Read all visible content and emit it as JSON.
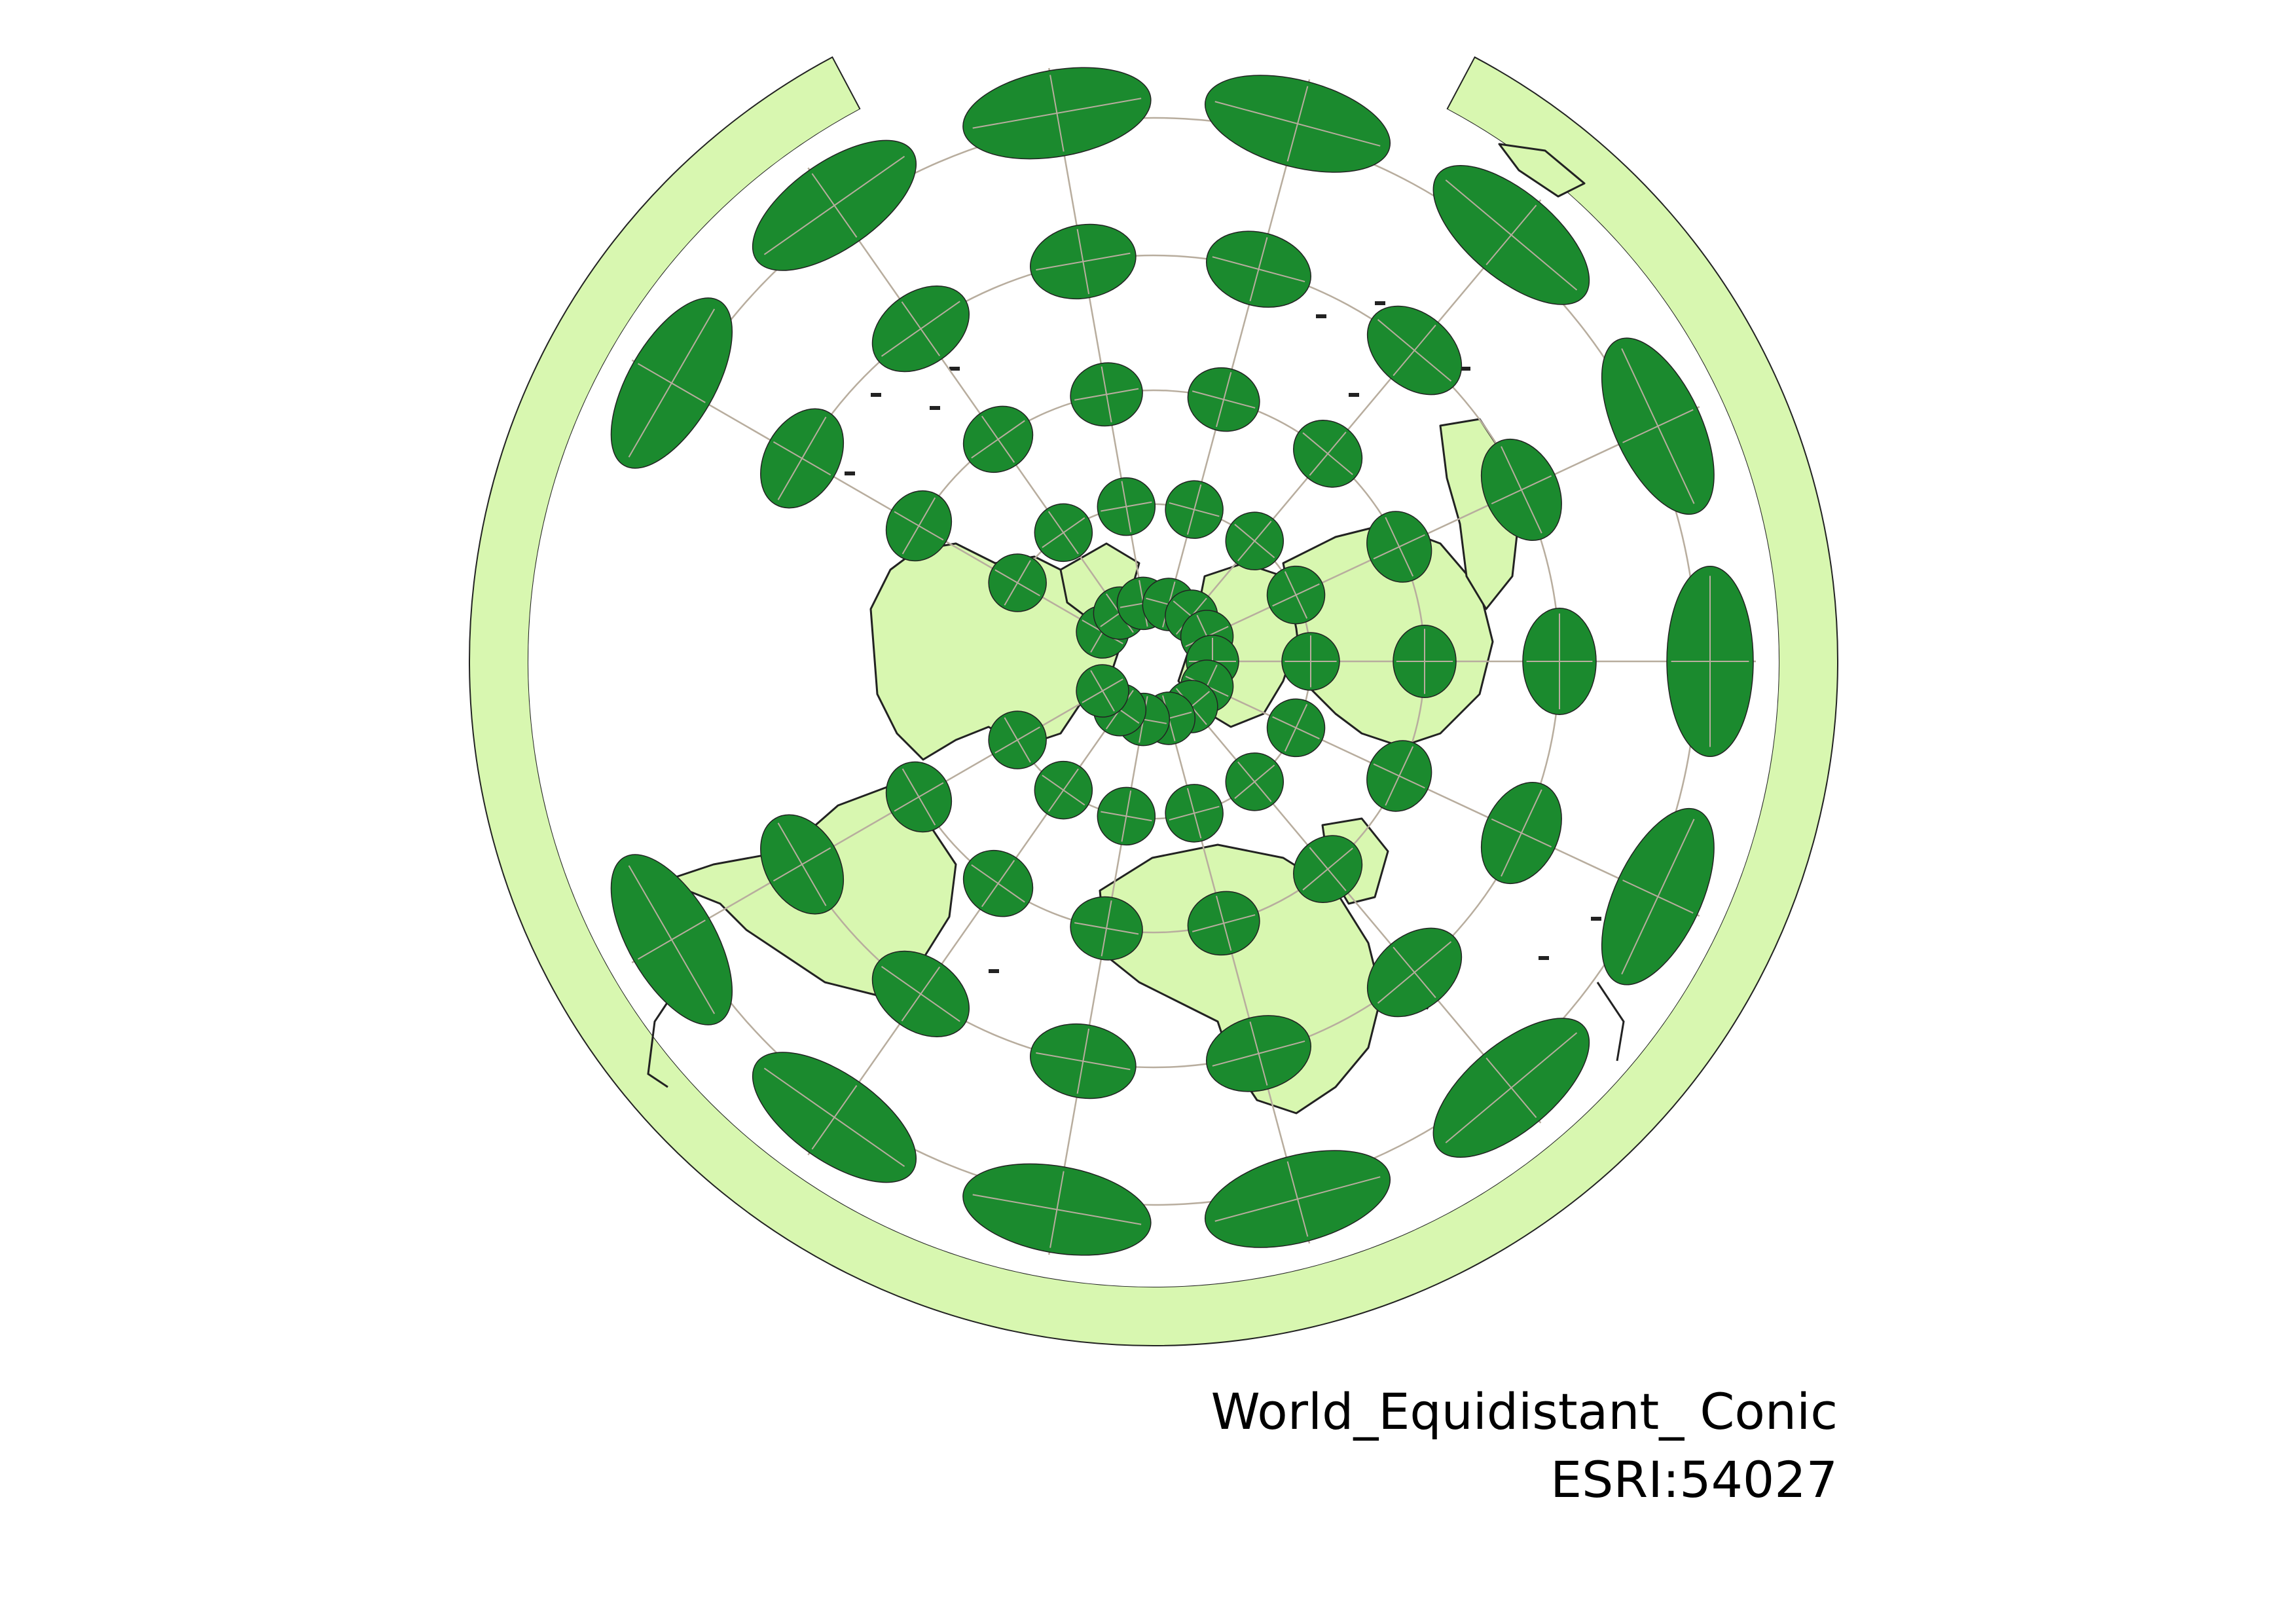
{
  "map": {
    "projection_name": "World_Equidistant_ Conic",
    "projection_code": "ESRI:54027",
    "colors": {
      "land": "#d8f7b0",
      "border": "#222222",
      "indicatrix": "#1b8a2e",
      "graticule": "#b8ad9e",
      "background": "#ffffff"
    },
    "layers": [
      "world-land-polygons",
      "country-borders",
      "graticule",
      "tissot-indicatrices"
    ]
  }
}
